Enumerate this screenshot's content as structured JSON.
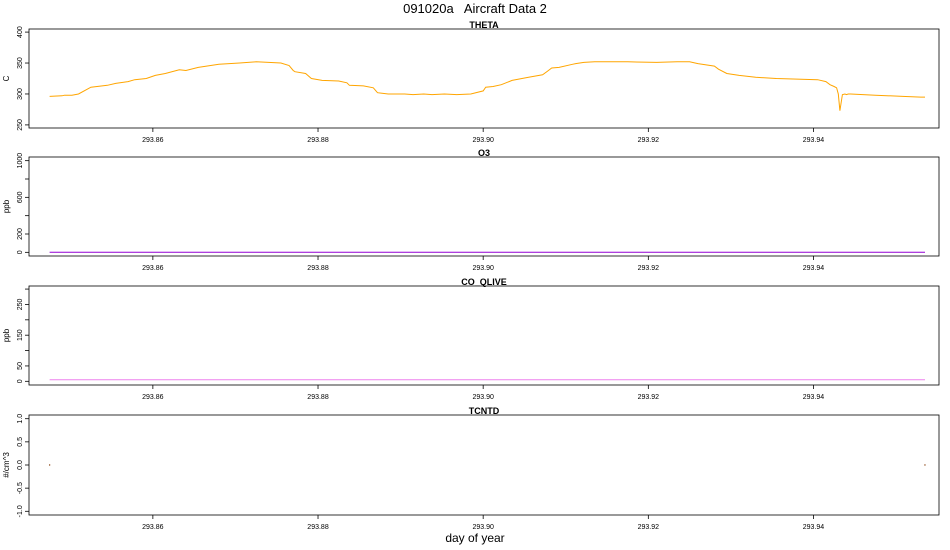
{
  "page": {
    "title": "091020a   Aircraft Data 2",
    "xlabel": "day of year"
  },
  "chart_data": [
    {
      "type": "line",
      "title": "THETA",
      "ylabel": "C",
      "color": "#FFA500",
      "xlim": [
        293.845,
        293.9552
      ],
      "ylim": [
        245,
        405
      ],
      "yticks": [
        250,
        300,
        350,
        400
      ],
      "xticks": [
        293.86,
        293.88,
        293.9,
        293.92,
        293.94
      ],
      "x": [
        293.8475,
        293.849,
        293.8493,
        293.8502,
        293.851,
        293.8525,
        293.8545,
        293.8555,
        293.857,
        293.8578,
        293.8592,
        293.8603,
        293.8615,
        293.8632,
        293.864,
        293.8655,
        293.868,
        293.8705,
        293.8725,
        293.8755,
        293.8765,
        293.877,
        293.8772,
        293.8785,
        293.8792,
        293.8805,
        293.8825,
        293.8835,
        293.8838,
        293.8855,
        293.8867,
        293.8872,
        293.8885,
        293.8905,
        293.8915,
        293.8928,
        293.8938,
        293.8953,
        293.8968,
        293.8985,
        293.9,
        293.9003,
        293.9012,
        293.9022,
        293.9035,
        293.9055,
        293.9072,
        293.9078,
        293.9083,
        293.9092,
        293.9108,
        293.9112,
        293.9122,
        293.9135,
        293.9175,
        293.921,
        293.9235,
        293.925,
        293.926,
        293.928,
        293.9285,
        293.9295,
        293.931,
        293.933,
        293.9355,
        293.938,
        293.9405,
        293.9415,
        293.942,
        293.9425,
        293.9428,
        293.943,
        293.9432,
        293.9435,
        293.9438,
        293.944,
        293.9442,
        293.9445,
        293.946,
        293.9475,
        293.9508,
        293.953,
        293.9535
      ],
      "y": [
        296,
        297,
        298,
        298,
        300,
        311,
        314,
        317,
        320,
        323,
        325,
        330,
        333,
        339,
        338,
        343,
        348,
        350,
        352,
        350,
        346,
        338,
        336,
        333,
        325,
        322,
        321,
        318,
        314,
        313,
        310,
        302,
        300,
        300,
        299,
        300,
        299,
        300,
        299,
        300,
        305,
        311,
        312,
        315,
        322,
        327,
        331,
        337,
        342,
        343,
        348,
        349,
        351,
        352,
        352,
        351,
        352,
        352,
        349,
        345,
        340,
        333,
        330,
        327,
        325,
        324,
        323,
        320,
        315,
        312,
        310,
        300,
        273,
        299,
        300,
        299,
        300,
        300,
        299,
        298,
        296,
        295,
        295
      ]
    },
    {
      "type": "line",
      "title": "O3",
      "ylabel": "ppb",
      "color": "#9400D3",
      "xlim": [
        293.845,
        293.9552
      ],
      "ylim": [
        -40,
        1040
      ],
      "yticks": [
        0,
        200,
        400,
        600,
        800,
        1000
      ],
      "yticklabels": [
        "0",
        "200",
        "",
        "600",
        "",
        "1000"
      ],
      "xticks": [
        293.86,
        293.88,
        293.9,
        293.92,
        293.94
      ],
      "x": [
        293.8475,
        293.9535
      ],
      "y": [
        0,
        0
      ]
    },
    {
      "type": "line",
      "title": "CO_QLIVE",
      "ylabel": "ppb",
      "color": "#EE82EE",
      "xlim": [
        293.845,
        293.9552
      ],
      "ylim": [
        -12,
        310
      ],
      "yticks": [
        0,
        50,
        100,
        150,
        200,
        250,
        300
      ],
      "yticklabels": [
        "0",
        "50",
        "",
        "150",
        "",
        "250",
        ""
      ],
      "xticks": [
        293.86,
        293.88,
        293.9,
        293.92,
        293.94
      ],
      "x": [
        293.8475,
        293.9535
      ],
      "y": [
        5,
        5
      ]
    },
    {
      "type": "scatter",
      "title": "TCNTD",
      "ylabel": "#/cm^3",
      "color": "#8B4513",
      "xlim": [
        293.845,
        293.9552
      ],
      "ylim": [
        -1.08,
        1.08
      ],
      "yticks": [
        -1.0,
        -0.5,
        0.0,
        0.5,
        1.0
      ],
      "yticklabels": [
        "-1.0",
        "-0.5",
        "0.0",
        "0.5",
        "1.0"
      ],
      "xticks": [
        293.86,
        293.88,
        293.9,
        293.92,
        293.94
      ],
      "x": [
        293.8475,
        293.9535
      ],
      "y": [
        0,
        0
      ]
    }
  ]
}
